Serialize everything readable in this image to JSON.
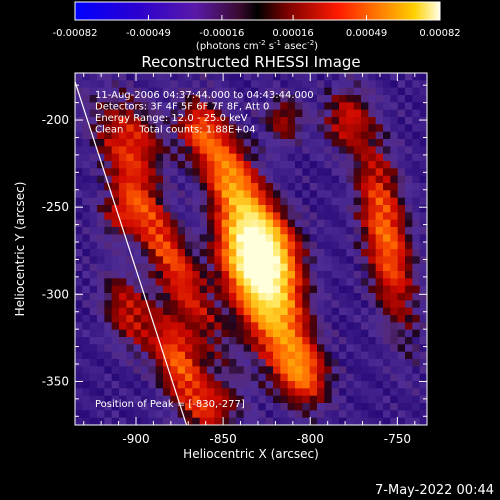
{
  "chart_data": {
    "type": "heatmap",
    "title": "Reconstructed RHESSI Image",
    "xlabel": "Heliocentric X (arcsec)",
    "ylabel": "Heliocentric Y (arcsec)",
    "xlim": [
      -935,
      -733
    ],
    "ylim": [
      -375,
      -173
    ],
    "x_ticks": [
      -900,
      -850,
      -800,
      -750
    ],
    "x_tick_labels": [
      "-900",
      "-850",
      "-800",
      "-750"
    ],
    "y_ticks": [
      -200,
      -250,
      -300,
      -350
    ],
    "y_tick_labels": [
      "-200",
      "-250",
      "-300",
      "-350"
    ],
    "colorbar": {
      "range": [
        -0.00082,
        0.00082
      ],
      "ticks": [
        -0.00082,
        -0.00049,
        -0.00016,
        0.00016,
        0.00049,
        0.00082
      ],
      "tick_labels": [
        "-0.00082",
        "-0.00049",
        "-0.00016",
        "0.00016",
        "0.00049",
        "0.00082"
      ],
      "unit_label": "(photons cm",
      "unit_exp1": "-2",
      "unit_mid": " s",
      "unit_exp2": "-1",
      "unit_mid2": " asec",
      "unit_exp3": "-2",
      "unit_end": ")"
    },
    "annotations": [
      "11-Aug-2006 04:37:44.000 to 04:43:44.000",
      "Detectors: 3F 4F 5F 6F 7F 8F, Att 0",
      "Energy Range: 12.0 - 25.0 keV",
      "Clean     Total counts: 1.88E+04"
    ],
    "peak_label": "Position of Peak = [-830,-277]",
    "peak_position": [
      -830,
      -277
    ],
    "features": [
      {
        "cx": -830,
        "cy": -277,
        "sx": 14,
        "sy": 18,
        "rot": -22,
        "amp": 1.6
      },
      {
        "cx": -845,
        "cy": -235,
        "sx": 10,
        "sy": 28,
        "rot": -25,
        "amp": 1.0
      },
      {
        "cx": -822,
        "cy": -310,
        "sx": 12,
        "sy": 22,
        "rot": -20,
        "amp": 1.05
      },
      {
        "cx": -805,
        "cy": -345,
        "sx": 10,
        "sy": 14,
        "rot": -20,
        "amp": 0.8
      },
      {
        "cx": -885,
        "cy": -270,
        "sx": 8,
        "sy": 48,
        "rot": -28,
        "amp": 0.75
      },
      {
        "cx": -875,
        "cy": -340,
        "sx": 9,
        "sy": 22,
        "rot": -20,
        "amp": 0.8
      },
      {
        "cx": -900,
        "cy": -210,
        "sx": 10,
        "sy": 18,
        "rot": -25,
        "amp": 0.55
      },
      {
        "cx": -757,
        "cy": -265,
        "sx": 9,
        "sy": 38,
        "rot": -10,
        "amp": 0.85
      },
      {
        "cx": -780,
        "cy": -200,
        "sx": 9,
        "sy": 12,
        "rot": 0,
        "amp": 0.5
      },
      {
        "cx": -815,
        "cy": -200,
        "sx": 8,
        "sy": 10,
        "rot": 0,
        "amp": 0.45
      },
      {
        "cx": -905,
        "cy": -310,
        "sx": 9,
        "sy": 16,
        "rot": -20,
        "amp": 0.55
      },
      {
        "cx": -855,
        "cy": -365,
        "sx": 10,
        "sy": 10,
        "rot": 0,
        "amp": 0.45
      },
      {
        "cx": -910,
        "cy": -255,
        "sx": 8,
        "sy": 10,
        "rot": 0,
        "amp": 0.45
      },
      {
        "cx": -865,
        "cy": -205,
        "sx": 8,
        "sy": 10,
        "rot": 0,
        "amp": 0.4
      }
    ],
    "limb_line": [
      [
        -935,
        -178
      ],
      [
        -871,
        -375
      ]
    ],
    "grid": false
  },
  "footer": {
    "timestamp": "7-May-2022 00:44"
  },
  "colors": {
    "background": "#000000",
    "foreground": "#ffffff",
    "negative_floor": "#4a2a8c"
  }
}
